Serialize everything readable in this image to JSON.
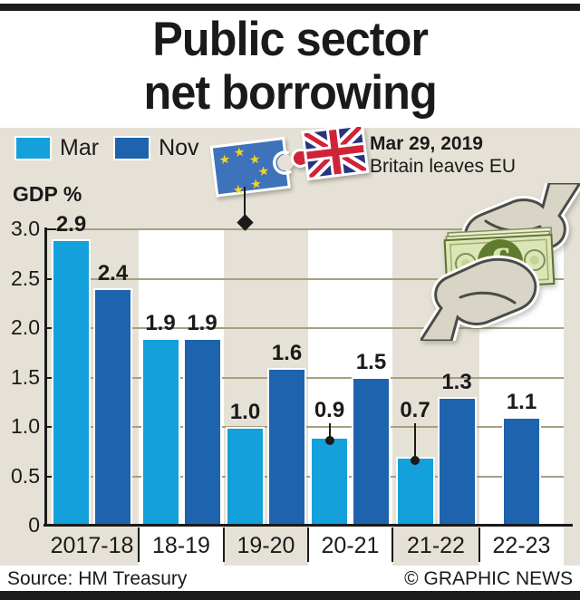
{
  "title": {
    "line1": "Public sector",
    "line2": "net borrowing"
  },
  "legend": [
    {
      "label": "Mar",
      "color": "#14a0da"
    },
    {
      "label": "Nov",
      "color": "#1e63ad"
    }
  ],
  "annotation": {
    "date": "Mar 29, 2019",
    "text": "Britain leaves EU"
  },
  "axis_label": "GDP %",
  "footer": {
    "source": "Source: HM Treasury",
    "credit": "© GRAPHIC NEWS"
  },
  "icons": [
    "eu-flag-icon",
    "uk-flag-icon",
    "pound-note-icon",
    "hands-icon",
    "event-diamond-marker"
  ],
  "colors": {
    "mar": "#14a0da",
    "nov": "#1e63ad",
    "background": "#e6e1d6",
    "stripe_alt": "#ffffff",
    "gridline": "#a5a081",
    "text": "#1a1a1a",
    "eu_blue": "#3e72ba",
    "star_yellow": "#f6d321",
    "uk_blue": "#27357e",
    "uk_red": "#cf2438",
    "note_green": "#dce5b8",
    "note_dark_green": "#5f7b2e",
    "hand_fill": "#d8d5c6",
    "hand_outline": "#4b4b48"
  },
  "chart_data": {
    "type": "bar",
    "title": "Public sector net borrowing",
    "ylabel": "GDP %",
    "categories": [
      "2017-18",
      "18-19",
      "19-20",
      "20-21",
      "21-22",
      "22-23"
    ],
    "series": [
      {
        "name": "Mar",
        "color": "#14a0da",
        "values": [
          2.9,
          1.9,
          1.0,
          0.9,
          0.7,
          null
        ]
      },
      {
        "name": "Nov",
        "color": "#1e63ad",
        "values": [
          2.4,
          1.9,
          1.6,
          1.5,
          1.3,
          1.1
        ]
      }
    ],
    "ylim": [
      0,
      3.0
    ],
    "ytick_labels": [
      "3.0",
      "2.5",
      "2.0",
      "1.5",
      "1.0",
      "0.5",
      "0"
    ],
    "grid": true,
    "legend_position": "top-left",
    "callouts": [
      {
        "category": "20-21",
        "series": "Mar"
      },
      {
        "category": "21-22",
        "series": "Mar"
      }
    ],
    "event_annotation": {
      "date": "Mar 29, 2019",
      "text": "Britain leaves EU",
      "marker": "diamond"
    }
  }
}
